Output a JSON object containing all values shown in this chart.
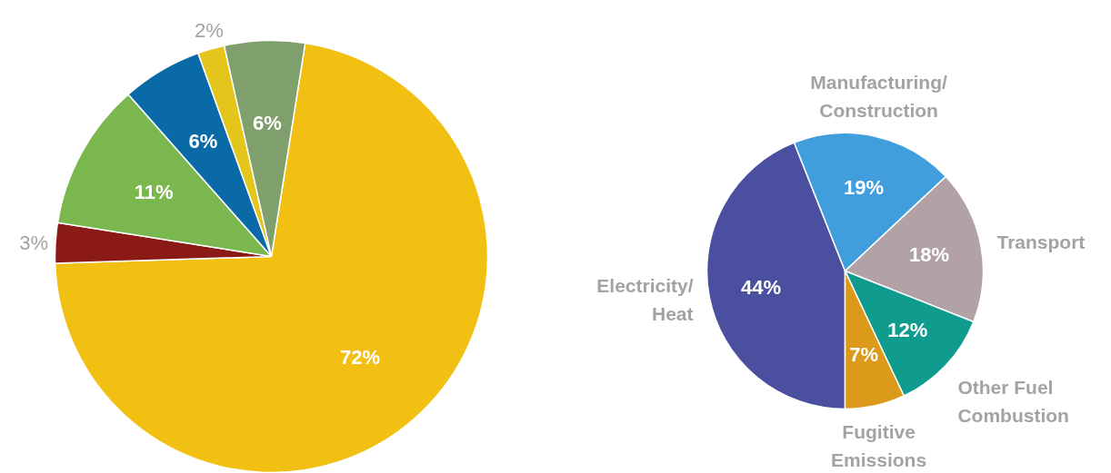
{
  "chart_data": [
    {
      "type": "pie",
      "categories": [
        null,
        null,
        null,
        null,
        null,
        null
      ],
      "values": [
        72,
        3,
        11,
        6,
        2,
        6
      ],
      "colors": [
        "#f2c012",
        "#8b1a17",
        "#7ab84f",
        "#0a6aa8",
        "#e3c51c",
        "#7f9f6c"
      ],
      "value_labels": [
        "72%",
        "3%",
        "11%",
        "6%",
        "2%",
        "6%"
      ]
    },
    {
      "type": "pie",
      "categories": [
        "Electricity/\nHeat",
        "Manufacturing/\nConstruction",
        "Transport",
        "Other Fuel\nCombustion",
        "Fugitive\nEmissions"
      ],
      "values": [
        44,
        19,
        18,
        12,
        7
      ],
      "colors": [
        "#4a4f9f",
        "#3f9edb",
        "#b2a2a5",
        "#0f9b8e",
        "#dc9a1b"
      ],
      "value_labels": [
        "44%",
        "19%",
        "18%",
        "12%",
        "7%"
      ]
    }
  ]
}
